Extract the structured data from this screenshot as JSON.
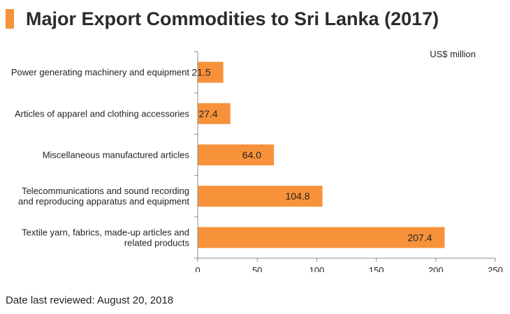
{
  "title": "Major Export Commodities to Sri Lanka (2017)",
  "footnote": "Date last reviewed: August 20, 2018",
  "colors": {
    "accent": "#f7923a",
    "bar": "#f7923a",
    "axis": "#8c8c8c"
  },
  "chart_data": {
    "type": "bar",
    "orientation": "horizontal",
    "unit_label": "US$ million",
    "categories": [
      [
        "Power generating machinery and equipment"
      ],
      [
        "Articles of apparel and clothing accessories"
      ],
      [
        "Miscellaneous manufactured articles"
      ],
      [
        "Telecommunications and sound recording",
        "and reproducing apparatus and equipment"
      ],
      [
        "Textile yarn, fabrics, made-up articles and",
        "related products"
      ]
    ],
    "values": [
      21.5,
      27.4,
      64.0,
      104.8,
      207.4
    ],
    "value_labels": [
      "21.5",
      "27.4",
      "64.0",
      "104.8",
      "207.4"
    ],
    "xlim": [
      0,
      250
    ],
    "x_ticks": [
      0,
      50,
      100,
      150,
      200,
      250
    ],
    "xlabel": "",
    "ylabel": "",
    "grid": false,
    "legend": "none"
  }
}
